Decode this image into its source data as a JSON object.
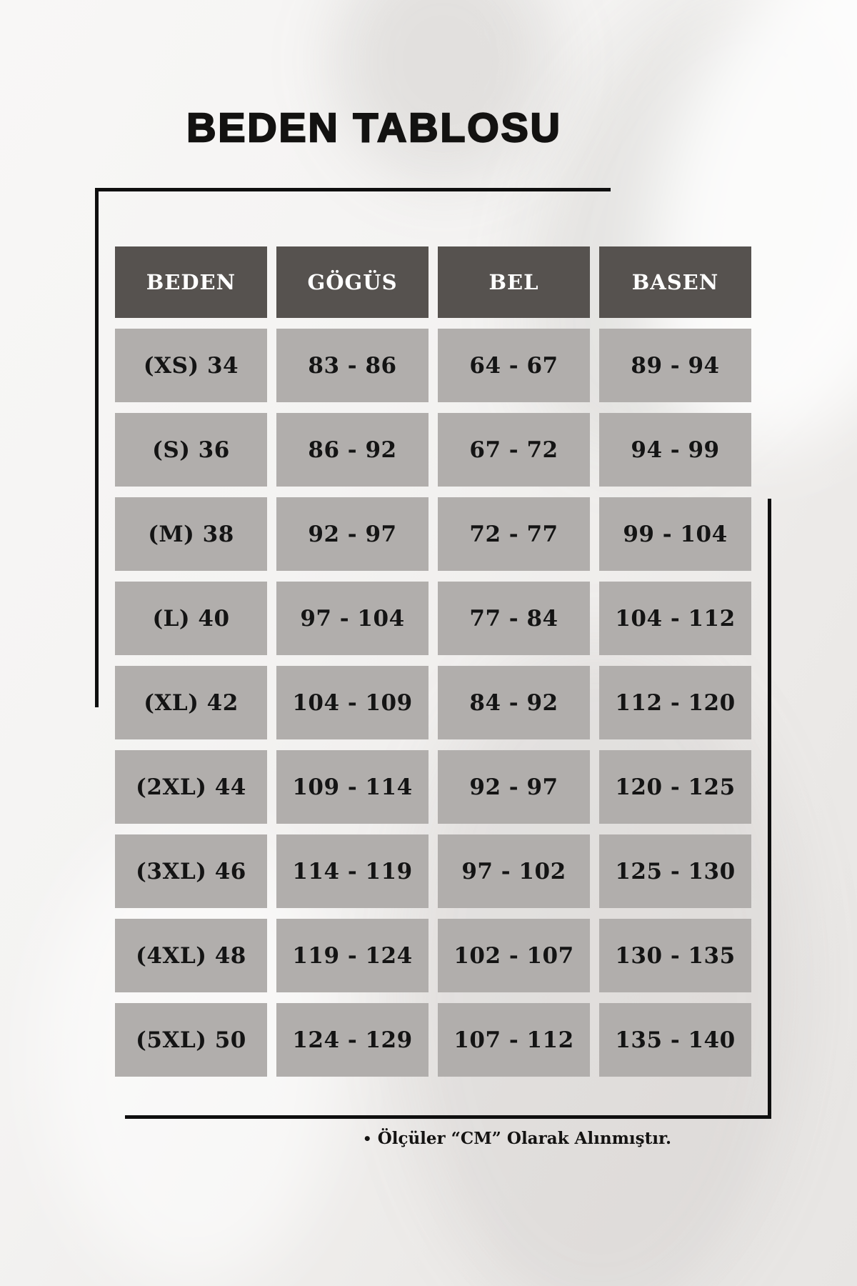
{
  "page": {
    "title": "BEDEN TABLOSU"
  },
  "table": {
    "headers": [
      "BEDEN",
      "GÖGÜS",
      "BEL",
      "BASEN"
    ],
    "rows": [
      {
        "cells": [
          "(XS) 34",
          "83 - 86",
          "64 - 67",
          "89 - 94"
        ]
      },
      {
        "cells": [
          "(S) 36",
          "86 - 92",
          "67 - 72",
          "94 - 99"
        ]
      },
      {
        "cells": [
          "(M) 38",
          "92 - 97",
          "72 - 77",
          "99 - 104"
        ]
      },
      {
        "cells": [
          "(L) 40",
          "97 - 104",
          "77 - 84",
          "104 - 112"
        ]
      },
      {
        "cells": [
          "(XL) 42",
          "104 - 109",
          "84 - 92",
          "112 - 120"
        ]
      },
      {
        "cells": [
          "(2XL) 44",
          "109 - 114",
          "92 - 97",
          "120 - 125"
        ]
      },
      {
        "cells": [
          "(3XL) 46",
          "114 - 119",
          "97 - 102",
          "125 - 130"
        ]
      },
      {
        "cells": [
          "(4XL) 48",
          "119 - 124",
          "102 - 107",
          "130 - 135"
        ]
      },
      {
        "cells": [
          "(5XL) 50",
          "124 - 129",
          "107 - 112",
          "135 - 140"
        ]
      }
    ]
  },
  "footer": {
    "bullet": "•",
    "note": "Ölçüler “CM” Olarak Alınmıştır."
  },
  "colors": {
    "header_bg": "#56524f",
    "cell_bg": "#b1aeac",
    "header_text": "#ffffff",
    "cell_text": "#141414",
    "line": "#0f0f0f",
    "background": "#f3f2f1"
  }
}
